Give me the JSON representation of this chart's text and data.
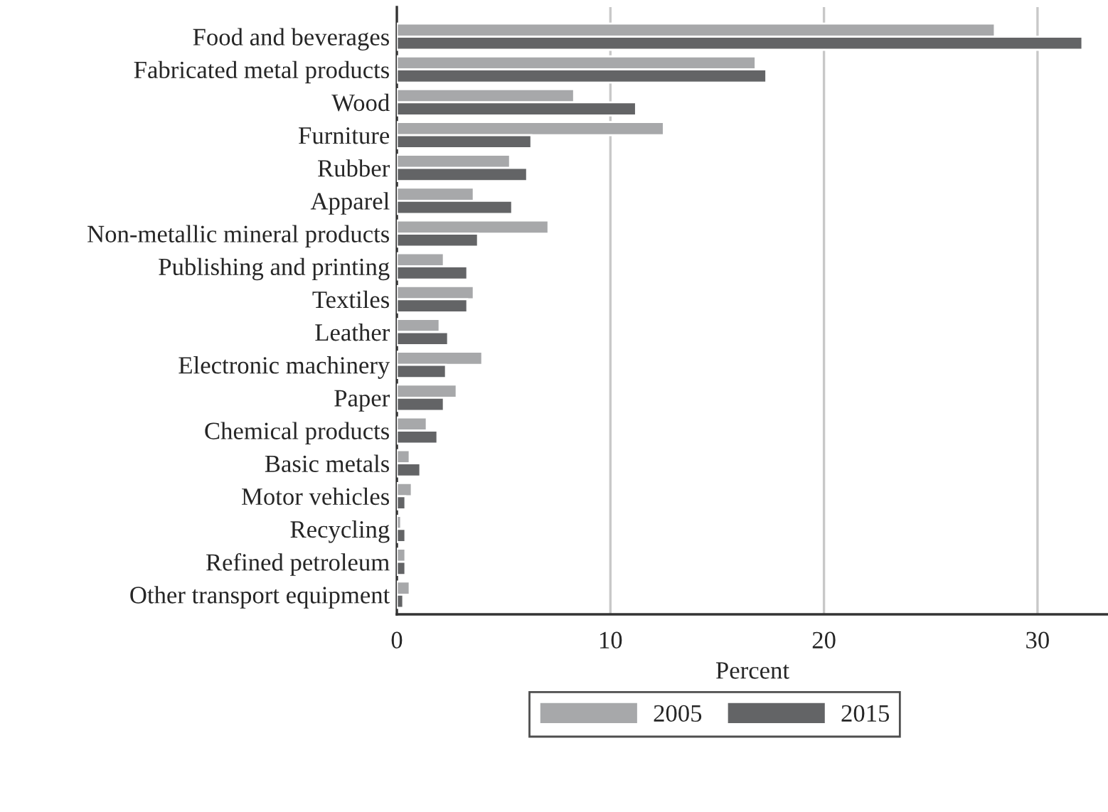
{
  "chart_data": {
    "type": "bar",
    "orientation": "horizontal",
    "xlabel": "Percent",
    "categories": [
      "Food and beverages",
      "Fabricated metal products",
      "Wood",
      "Furniture",
      "Rubber",
      "Apparel",
      "Non-metallic mineral products",
      "Publishing and printing",
      "Textiles",
      "Leather",
      "Electronic machinery",
      "Paper",
      "Chemical products",
      "Basic metals",
      "Motor vehicles",
      "Recycling",
      "Refined petroleum",
      "Other transport equipment"
    ],
    "series": [
      {
        "name": "2005",
        "color": "#a7a8aa",
        "values": [
          28.0,
          16.8,
          8.3,
          12.5,
          5.3,
          3.6,
          7.1,
          2.2,
          3.6,
          2.0,
          4.0,
          2.8,
          1.4,
          0.6,
          0.7,
          0.2,
          0.4,
          0.6
        ]
      },
      {
        "name": "2015",
        "color": "#636466",
        "values": [
          32.1,
          17.3,
          11.2,
          6.3,
          6.1,
          5.4,
          3.8,
          3.3,
          3.3,
          2.4,
          2.3,
          2.2,
          1.9,
          1.1,
          0.4,
          0.4,
          0.4,
          0.3
        ]
      }
    ],
    "xlim": [
      0,
      33.3
    ],
    "xticks": [
      0,
      10,
      20,
      30
    ],
    "grid": "x",
    "legend": "bottom"
  }
}
